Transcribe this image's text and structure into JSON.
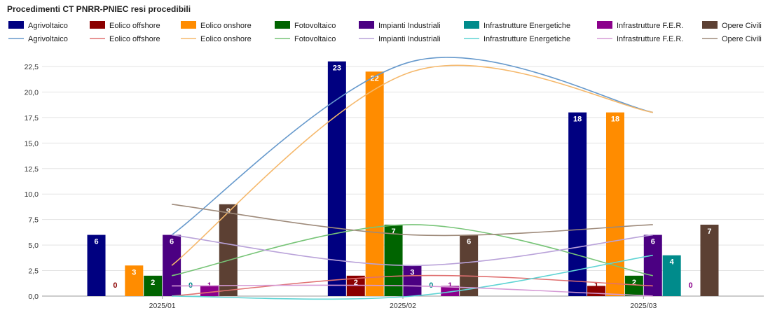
{
  "chart_data": {
    "type": "bar",
    "title": "Procedimenti CT PNRR-PNIEC resi procedibili",
    "categories": [
      "2025/01",
      "2025/02",
      "2025/03"
    ],
    "ylim": [
      0,
      22.5
    ],
    "yticks": [
      "0,0",
      "2,5",
      "5,0",
      "7,5",
      "10,0",
      "12,5",
      "15,0",
      "17,5",
      "20,0",
      "22,5"
    ],
    "ytick_values": [
      0,
      2.5,
      5,
      7.5,
      10,
      12.5,
      15,
      17.5,
      20,
      22.5
    ],
    "grid": true,
    "legend_position": "top",
    "series": [
      {
        "name": "Agrivoltaico",
        "color": "#000080",
        "values": [
          6,
          23,
          18
        ],
        "labels": [
          "6",
          "23",
          "18"
        ]
      },
      {
        "name": "Eolico offshore",
        "color": "#8B0000",
        "values": [
          0,
          2,
          1
        ],
        "labels": [
          "0",
          "2",
          "1"
        ]
      },
      {
        "name": "Eolico onshore",
        "color": "#FF8C00",
        "values": [
          3,
          22,
          18
        ],
        "labels": [
          "3",
          "22",
          "18"
        ]
      },
      {
        "name": "Fotovoltaico",
        "color": "#006400",
        "values": [
          2,
          7,
          2
        ],
        "labels": [
          "2",
          "7",
          "2"
        ]
      },
      {
        "name": "Impianti Industriali",
        "color": "#4B0082",
        "values": [
          6,
          3,
          6
        ],
        "labels": [
          "6",
          "3",
          "6"
        ]
      },
      {
        "name": "Infrastrutture Energetiche",
        "color": "#008B8B",
        "values": [
          0,
          0,
          4
        ],
        "labels": [
          "0",
          "0",
          "4"
        ]
      },
      {
        "name": "Infrastrutture F.E.R.",
        "color": "#8B008B",
        "values": [
          1,
          1,
          0
        ],
        "labels": [
          "1",
          "1",
          "0"
        ]
      },
      {
        "name": "Opere Civili",
        "color": "#5C4033",
        "values": [
          9,
          6,
          7
        ],
        "labels": [
          "9",
          "6",
          "7"
        ]
      }
    ],
    "trend_lines": [
      {
        "name": "Agrivoltaico",
        "color": "#6699CC"
      },
      {
        "name": "Eolico offshore",
        "color": "#E07070"
      },
      {
        "name": "Eolico onshore",
        "color": "#F5B86B"
      },
      {
        "name": "Fotovoltaico",
        "color": "#77C477"
      },
      {
        "name": "Impianti Industriali",
        "color": "#B9A2D9"
      },
      {
        "name": "Infrastrutture Energetiche",
        "color": "#5FD4D4"
      },
      {
        "name": "Infrastrutture F.E.R.",
        "color": "#D59AD5"
      },
      {
        "name": "Opere Civili",
        "color": "#9E8A7A"
      }
    ]
  }
}
